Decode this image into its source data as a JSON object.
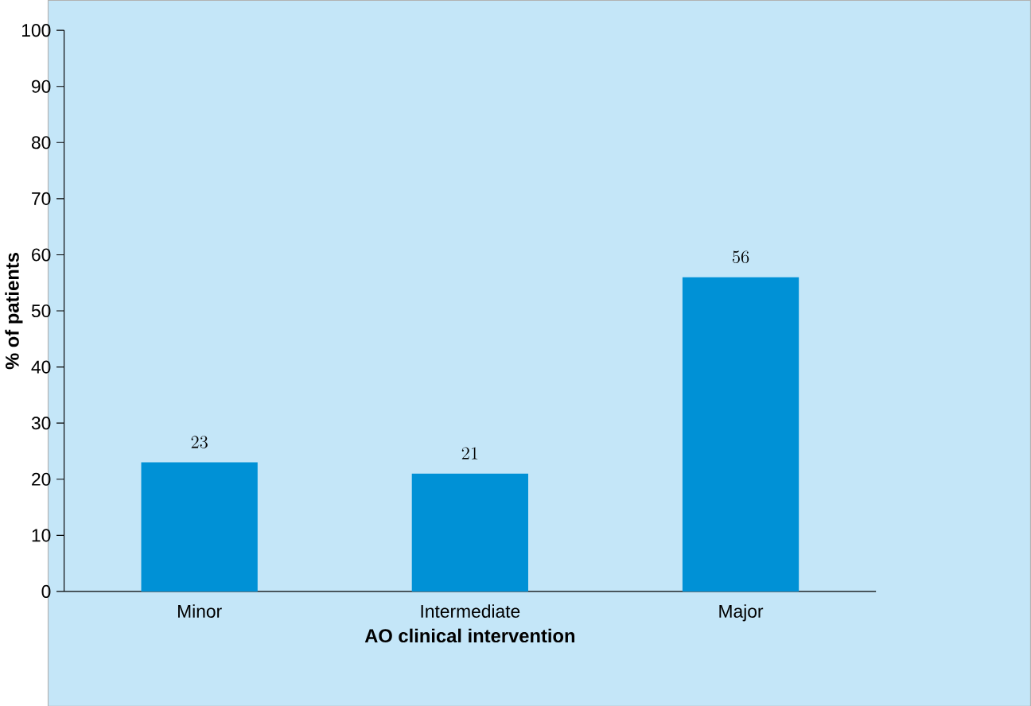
{
  "chart_data": {
    "type": "bar",
    "xlabel": "AO clinical intervention",
    "ylabel": "% of patients",
    "categories": [
      "Minor",
      "Intermediate",
      "Major"
    ],
    "values": [
      23,
      21,
      56
    ],
    "color": "#0091d6",
    "ylim": [
      0,
      100
    ],
    "yticks": [
      0,
      10,
      20,
      30,
      40,
      50,
      60,
      70,
      80,
      90,
      100
    ],
    "grid": false,
    "data_labels": true
  }
}
